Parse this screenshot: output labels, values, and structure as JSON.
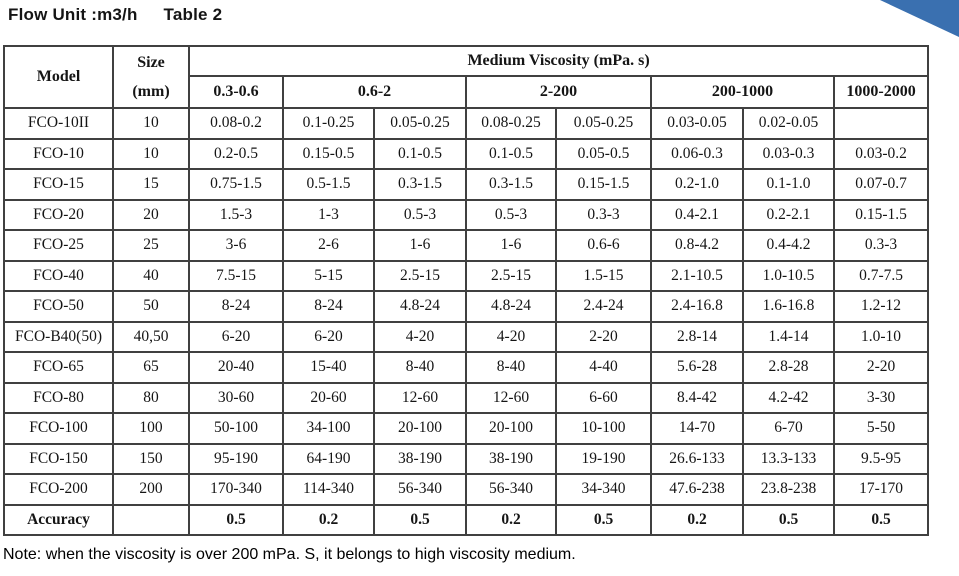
{
  "page": {
    "flow_unit_label": "Flow Unit :m3/h",
    "table_caption": "Table 2",
    "note": "Note: when the viscosity is over 200 mPa. S, it belongs to high viscosity medium."
  },
  "colors": {
    "accent_blue": "#3a70b0",
    "border": "#404040",
    "text": "#151515"
  },
  "table": {
    "header": {
      "model": "Model",
      "size_line1": "Size",
      "size_line2": "(mm)",
      "viscosity_title": "Medium Viscosity (mPa. s)",
      "ranges": [
        "0.3-0.6",
        "0.6-2",
        "2-200",
        "200-1000",
        "1000-2000"
      ]
    },
    "rows": [
      {
        "model": "FCO-10II",
        "size": "10",
        "values": [
          "0.08-0.2",
          "0.1-0.25",
          "0.05-0.25",
          "0.08-0.25",
          "0.05-0.25",
          "0.03-0.05",
          "0.02-0.05",
          ""
        ]
      },
      {
        "model": "FCO-10",
        "size": "10",
        "values": [
          "0.2-0.5",
          "0.15-0.5",
          "0.1-0.5",
          "0.1-0.5",
          "0.05-0.5",
          "0.06-0.3",
          "0.03-0.3",
          "0.03-0.2"
        ]
      },
      {
        "model": "FCO-15",
        "size": "15",
        "values": [
          "0.75-1.5",
          "0.5-1.5",
          "0.3-1.5",
          "0.3-1.5",
          "0.15-1.5",
          "0.2-1.0",
          "0.1-1.0",
          "0.07-0.7"
        ]
      },
      {
        "model": "FCO-20",
        "size": "20",
        "values": [
          "1.5-3",
          "1-3",
          "0.5-3",
          "0.5-3",
          "0.3-3",
          "0.4-2.1",
          "0.2-2.1",
          "0.15-1.5"
        ]
      },
      {
        "model": "FCO-25",
        "size": "25",
        "values": [
          "3-6",
          "2-6",
          "1-6",
          "1-6",
          "0.6-6",
          "0.8-4.2",
          "0.4-4.2",
          "0.3-3"
        ]
      },
      {
        "model": "FCO-40",
        "size": "40",
        "values": [
          "7.5-15",
          "5-15",
          "2.5-15",
          "2.5-15",
          "1.5-15",
          "2.1-10.5",
          "1.0-10.5",
          "0.7-7.5"
        ]
      },
      {
        "model": "FCO-50",
        "size": "50",
        "values": [
          "8-24",
          "8-24",
          "4.8-24",
          "4.8-24",
          "2.4-24",
          "2.4-16.8",
          "1.6-16.8",
          "1.2-12"
        ]
      },
      {
        "model": "FCO-B40(50)",
        "size": "40,50",
        "values": [
          "6-20",
          "6-20",
          "4-20",
          "4-20",
          "2-20",
          "2.8-14",
          "1.4-14",
          "1.0-10"
        ]
      },
      {
        "model": "FCO-65",
        "size": "65",
        "values": [
          "20-40",
          "15-40",
          "8-40",
          "8-40",
          "4-40",
          "5.6-28",
          "2.8-28",
          "2-20"
        ]
      },
      {
        "model": "FCO-80",
        "size": "80",
        "values": [
          "30-60",
          "20-60",
          "12-60",
          "12-60",
          "6-60",
          "8.4-42",
          "4.2-42",
          "3-30"
        ]
      },
      {
        "model": "FCO-100",
        "size": "100",
        "values": [
          "50-100",
          "34-100",
          "20-100",
          "20-100",
          "10-100",
          "14-70",
          "6-70",
          "5-50"
        ]
      },
      {
        "model": "FCO-150",
        "size": "150",
        "values": [
          "95-190",
          "64-190",
          "38-190",
          "38-190",
          "19-190",
          "26.6-133",
          "13.3-133",
          "9.5-95"
        ]
      },
      {
        "model": "FCO-200",
        "size": "200",
        "values": [
          "170-340",
          "114-340",
          "56-340",
          "56-340",
          "34-340",
          "47.6-238",
          "23.8-238",
          "17-170"
        ]
      }
    ],
    "accuracy": {
      "label": "Accuracy",
      "size": "",
      "values": [
        "0.5",
        "0.2",
        "0.5",
        "0.2",
        "0.5",
        "0.2",
        "0.5",
        "0.5"
      ]
    }
  }
}
